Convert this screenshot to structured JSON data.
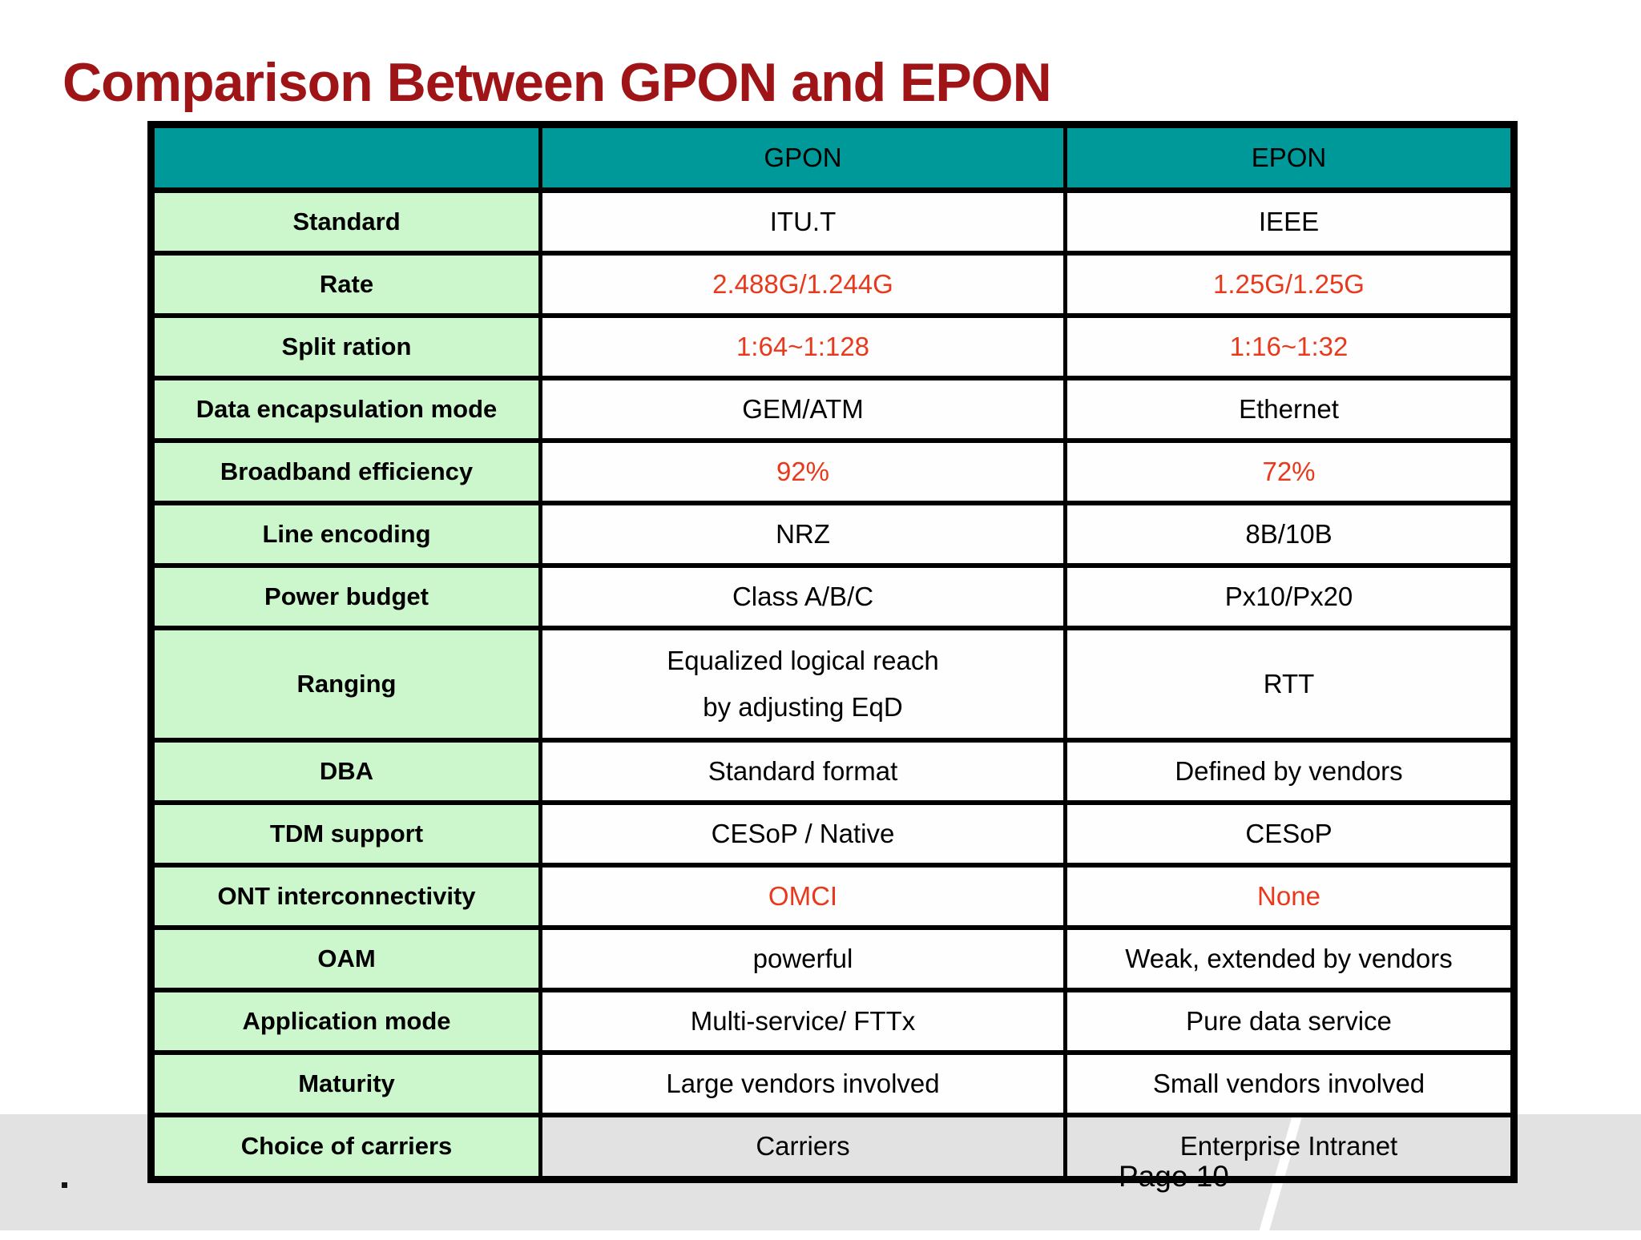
{
  "slide": {
    "title": "Comparison Between GPON and EPON",
    "page_number": "Page 10",
    "footer_dot": ".",
    "colors": {
      "title_red": "#9e1417",
      "header_teal": "#009999",
      "label_green": "#ccf7cc",
      "highlight_red": "#e8391c",
      "bottom_band_gray": "#e2e2e3"
    }
  },
  "table": {
    "columns": [
      "",
      "GPON",
      "EPON"
    ],
    "rows": [
      {
        "label": "Standard",
        "gpon": "ITU.T",
        "epon": "IEEE",
        "red": false
      },
      {
        "label": "Rate",
        "gpon": "2.488G/1.244G",
        "epon": "1.25G/1.25G",
        "red": true
      },
      {
        "label": "Split ration",
        "gpon": "1:64~1:128",
        "epon": "1:16~1:32",
        "red": true
      },
      {
        "label": "Data encapsulation mode",
        "gpon": "GEM/ATM",
        "epon": "Ethernet",
        "red": false
      },
      {
        "label": "Broadband efficiency",
        "gpon": "92%",
        "epon": "72%",
        "red": true
      },
      {
        "label": "Line encoding",
        "gpon": "NRZ",
        "epon": "8B/10B",
        "red": false
      },
      {
        "label": "Power budget",
        "gpon": "Class A/B/C",
        "epon": "Px10/Px20",
        "red": false
      },
      {
        "label": "Ranging",
        "gpon": "Equalized logical reach\nby adjusting EqD",
        "epon": "RTT",
        "red": false,
        "tall": true
      },
      {
        "label": "DBA",
        "gpon": "Standard format",
        "epon": "Defined by vendors",
        "red": false
      },
      {
        "label": "TDM support",
        "gpon": "CESoP / Native",
        "epon": "CESoP",
        "red": false
      },
      {
        "label": "ONT interconnectivity",
        "gpon": "OMCI",
        "epon": "None",
        "red": true
      },
      {
        "label": "OAM",
        "gpon": "powerful",
        "epon": "Weak, extended by vendors",
        "red": false
      },
      {
        "label": "Application mode",
        "gpon": "Multi-service/ FTTx",
        "epon": "Pure data service",
        "red": false
      },
      {
        "label": "Maturity",
        "gpon": "Large vendors involved",
        "epon": "Small vendors involved",
        "red": false
      },
      {
        "label": "Choice of carriers",
        "gpon": "Carriers",
        "epon": "Enterprise Intranet",
        "red": false,
        "gray": true
      }
    ]
  }
}
